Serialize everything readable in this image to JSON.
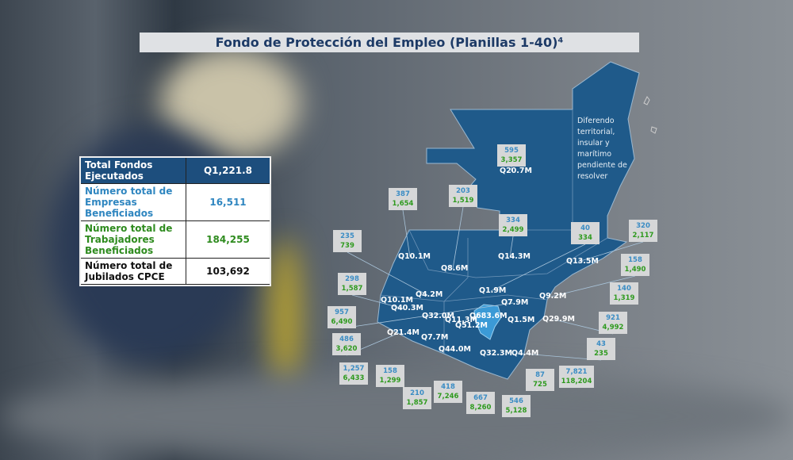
{
  "title": "Fondo de Protección del Empleo (Planillas 1-40)⁴",
  "summary": [
    {
      "label": "Total Fondos Ejecutados",
      "value": "Q1,221.8",
      "style": "head"
    },
    {
      "label": "Número total de Empresas Beneficiados",
      "value": "16,511",
      "style": "blue"
    },
    {
      "label": "Número total de Trabajadores Beneficiados",
      "value": "184,255",
      "style": "green"
    },
    {
      "label": "Número total de Jubilados CPCE",
      "value": "103,692",
      "style": "black"
    }
  ],
  "map": {
    "note": "Diferendo territorial, insular y marítimo pendiente de resolver",
    "highlight_color": "#3b9ad6",
    "region_color": "#1f5a8a",
    "amounts": [
      "Q20.7M",
      "Q10.1M",
      "Q8.6M",
      "Q14.3M",
      "Q13.5M",
      "Q4.2M",
      "Q1.9M",
      "Q9.2M",
      "Q10.1M",
      "Q40.3M",
      "Q7.9M",
      "Q32.0M",
      "Q11.3M",
      "Q683.6M",
      "Q51.2M",
      "Q1.5M",
      "Q29.9M",
      "Q21.4M",
      "Q7.7M",
      "Q44.0M",
      "Q32.3M",
      "Q4.4M"
    ],
    "boxes": [
      {
        "empresas": "595",
        "trabajadores": "3,357"
      },
      {
        "empresas": "387",
        "trabajadores": "1,654"
      },
      {
        "empresas": "203",
        "trabajadores": "1,519"
      },
      {
        "empresas": "334",
        "trabajadores": "2,499"
      },
      {
        "empresas": "40",
        "trabajadores": "334"
      },
      {
        "empresas": "320",
        "trabajadores": "2,117"
      },
      {
        "empresas": "235",
        "trabajadores": "739"
      },
      {
        "empresas": "158",
        "trabajadores": "1,490"
      },
      {
        "empresas": "298",
        "trabajadores": "1,587"
      },
      {
        "empresas": "140",
        "trabajadores": "1,319"
      },
      {
        "empresas": "957",
        "trabajadores": "6,490"
      },
      {
        "empresas": "921",
        "trabajadores": "4,992"
      },
      {
        "empresas": "486",
        "trabajadores": "3,620"
      },
      {
        "empresas": "43",
        "trabajadores": "235"
      },
      {
        "empresas": "1,257",
        "trabajadores": "6,433"
      },
      {
        "empresas": "158",
        "trabajadores": "1,299"
      },
      {
        "empresas": "210",
        "trabajadores": "1,857"
      },
      {
        "empresas": "418",
        "trabajadores": "7,246"
      },
      {
        "empresas": "667",
        "trabajadores": "8,260"
      },
      {
        "empresas": "546",
        "trabajadores": "5,128"
      },
      {
        "empresas": "87",
        "trabajadores": "725"
      },
      {
        "empresas": "7,821",
        "trabajadores": "118,204"
      }
    ]
  }
}
